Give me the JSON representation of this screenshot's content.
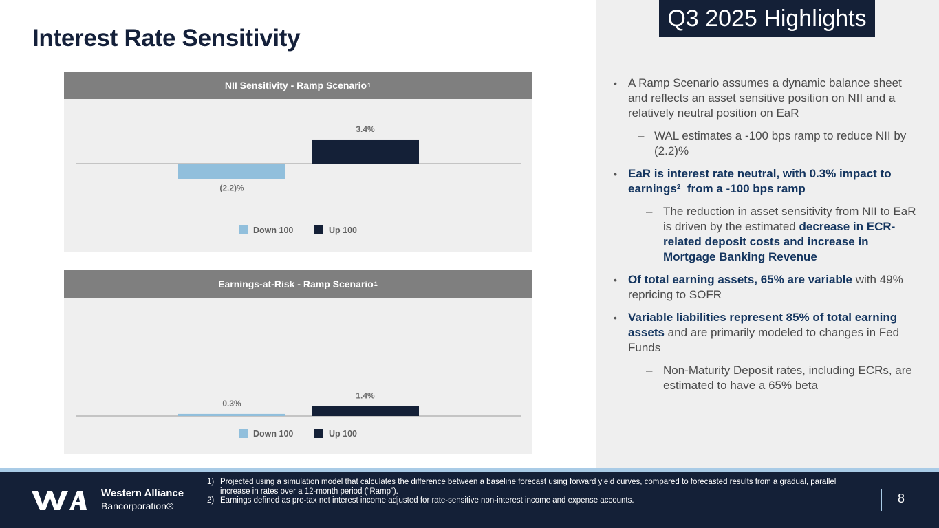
{
  "title": "Interest Rate Sensitivity",
  "highlight_badge": "Q3 2025 Highlights",
  "colors": {
    "navy": "#142037",
    "light_blue": "#91bfdc",
    "header_gray": "#7f7f7f",
    "panel_gray": "#efefef",
    "accent_text": "#14355f"
  },
  "chart_data": [
    {
      "type": "bar",
      "title": "NII Sensitivity - Ramp Scenario",
      "title_sup": "1",
      "categories": [
        "Down 100",
        "Up 100"
      ],
      "values": [
        -2.2,
        3.4
      ],
      "data_labels": [
        "(2.2)%",
        "3.4%"
      ],
      "colors": [
        "#91bfdc",
        "#142037"
      ],
      "legend": [
        "Down 100",
        "Up 100"
      ],
      "legend_position": "bottom",
      "ylim": [
        -4,
        6
      ]
    },
    {
      "type": "bar",
      "title": "Earnings-at-Risk - Ramp Scenario",
      "title_sup": "1",
      "categories": [
        "Down 100",
        "Up 100"
      ],
      "values": [
        0.3,
        1.4
      ],
      "data_labels": [
        "0.3%",
        "1.4%"
      ],
      "colors": [
        "#91bfdc",
        "#142037"
      ],
      "legend": [
        "Down 100",
        "Up 100"
      ],
      "legend_position": "bottom",
      "ylim": [
        -4,
        6
      ]
    }
  ],
  "bullets": {
    "b1": "A Ramp Scenario assumes a dynamic balance sheet and reflects an asset sensitive position on NII and a relatively neutral position on EaR",
    "b1_sub": "WAL estimates a -100 bps ramp to reduce NII by (2.2)%",
    "b2_part1": "EaR is interest rate neutral, with 0.3% impact to earnings",
    "b2_sup": "2",
    "b2_part2": "  from a -100 bps ramp",
    "b2_sub_plain": "The reduction in asset sensitivity from NII to EaR is driven by the estimated ",
    "b2_sub_bold": "decrease in ECR-related deposit costs and increase in Mortgage Banking Revenue",
    "b3_bold": "Of total earning assets, 65% are variable",
    "b3_plain": " with 49% repricing to SOFR",
    "b4_bold": "Variable liabilities represent 85% of total earning assets",
    "b4_plain": " and are primarily modeled to changes in Fed Funds",
    "b4_sub": "Non-Maturity Deposit rates, including ECRs, are estimated to have a 65% beta"
  },
  "footer": {
    "logo_line1": "Western Alliance",
    "logo_line2": "Bancorporation®",
    "footnotes": [
      {
        "num": "1)",
        "text": "Projected using a simulation model that calculates the difference between a baseline forecast using forward yield curves, compared to forecasted results from a gradual, parallel increase in rates over a 12-month period (“Ramp”)."
      },
      {
        "num": "2)",
        "text": "Earnings defined as pre-tax net interest income adjusted for rate-sensitive non-interest income and expense accounts."
      }
    ],
    "page_number": "8"
  }
}
